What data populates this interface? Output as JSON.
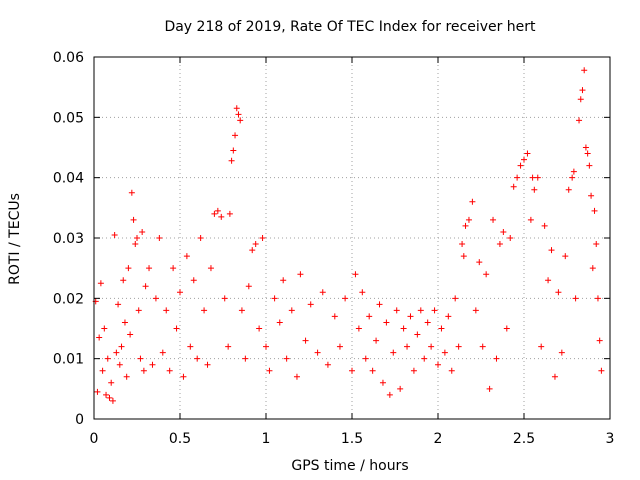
{
  "chart_data": {
    "type": "scatter",
    "title": "Day 218 of 2019, Rate Of TEC Index for receiver hert",
    "xlabel": "GPS time / hours",
    "ylabel": "ROTI / TECUs",
    "xlim": [
      0,
      3
    ],
    "ylim": [
      0,
      0.06
    ],
    "xticks": [
      0,
      0.5,
      1,
      1.5,
      2,
      2.5,
      3
    ],
    "xtick_labels": [
      "0",
      "0.5",
      "1",
      "1.5",
      "2",
      "2.5",
      "3"
    ],
    "yticks": [
      0,
      0.01,
      0.02,
      0.03,
      0.04,
      0.05,
      0.06
    ],
    "ytick_labels": [
      "0",
      "0.01",
      "0.02",
      "0.03",
      "0.04",
      "0.05",
      "0.06"
    ],
    "grid": true,
    "marker": "+",
    "color": "#ff0000",
    "series": [
      {
        "name": "ROTI",
        "points": [
          [
            0.01,
            0.0195
          ],
          [
            0.02,
            0.0045
          ],
          [
            0.03,
            0.0135
          ],
          [
            0.04,
            0.0225
          ],
          [
            0.05,
            0.008
          ],
          [
            0.06,
            0.015
          ],
          [
            0.07,
            0.004
          ],
          [
            0.08,
            0.01
          ],
          [
            0.09,
            0.0035
          ],
          [
            0.1,
            0.006
          ],
          [
            0.11,
            0.003
          ],
          [
            0.12,
            0.0305
          ],
          [
            0.13,
            0.011
          ],
          [
            0.14,
            0.019
          ],
          [
            0.15,
            0.009
          ],
          [
            0.16,
            0.012
          ],
          [
            0.17,
            0.023
          ],
          [
            0.18,
            0.016
          ],
          [
            0.19,
            0.007
          ],
          [
            0.2,
            0.025
          ],
          [
            0.21,
            0.014
          ],
          [
            0.22,
            0.0375
          ],
          [
            0.23,
            0.033
          ],
          [
            0.24,
            0.029
          ],
          [
            0.25,
            0.03
          ],
          [
            0.26,
            0.018
          ],
          [
            0.27,
            0.01
          ],
          [
            0.28,
            0.031
          ],
          [
            0.29,
            0.008
          ],
          [
            0.3,
            0.022
          ],
          [
            0.32,
            0.025
          ],
          [
            0.34,
            0.009
          ],
          [
            0.36,
            0.02
          ],
          [
            0.38,
            0.03
          ],
          [
            0.4,
            0.011
          ],
          [
            0.42,
            0.018
          ],
          [
            0.44,
            0.008
          ],
          [
            0.46,
            0.025
          ],
          [
            0.48,
            0.015
          ],
          [
            0.5,
            0.021
          ],
          [
            0.52,
            0.007
          ],
          [
            0.54,
            0.027
          ],
          [
            0.56,
            0.012
          ],
          [
            0.58,
            0.023
          ],
          [
            0.6,
            0.01
          ],
          [
            0.62,
            0.03
          ],
          [
            0.64,
            0.018
          ],
          [
            0.66,
            0.009
          ],
          [
            0.68,
            0.025
          ],
          [
            0.7,
            0.034
          ],
          [
            0.72,
            0.0345
          ],
          [
            0.74,
            0.0335
          ],
          [
            0.76,
            0.02
          ],
          [
            0.78,
            0.012
          ],
          [
            0.79,
            0.034
          ],
          [
            0.8,
            0.0428
          ],
          [
            0.81,
            0.0445
          ],
          [
            0.82,
            0.047
          ],
          [
            0.83,
            0.0515
          ],
          [
            0.84,
            0.0505
          ],
          [
            0.85,
            0.0495
          ],
          [
            0.86,
            0.018
          ],
          [
            0.88,
            0.01
          ],
          [
            0.9,
            0.022
          ],
          [
            0.92,
            0.028
          ],
          [
            0.94,
            0.029
          ],
          [
            0.96,
            0.015
          ],
          [
            0.98,
            0.03
          ],
          [
            1.0,
            0.012
          ],
          [
            1.02,
            0.008
          ],
          [
            1.05,
            0.02
          ],
          [
            1.08,
            0.016
          ],
          [
            1.1,
            0.023
          ],
          [
            1.12,
            0.01
          ],
          [
            1.15,
            0.018
          ],
          [
            1.18,
            0.007
          ],
          [
            1.2,
            0.024
          ],
          [
            1.23,
            0.013
          ],
          [
            1.26,
            0.019
          ],
          [
            1.3,
            0.011
          ],
          [
            1.33,
            0.021
          ],
          [
            1.36,
            0.009
          ],
          [
            1.4,
            0.017
          ],
          [
            1.43,
            0.012
          ],
          [
            1.46,
            0.02
          ],
          [
            1.5,
            0.008
          ],
          [
            1.52,
            0.024
          ],
          [
            1.54,
            0.015
          ],
          [
            1.56,
            0.021
          ],
          [
            1.58,
            0.01
          ],
          [
            1.6,
            0.017
          ],
          [
            1.62,
            0.008
          ],
          [
            1.64,
            0.013
          ],
          [
            1.66,
            0.019
          ],
          [
            1.68,
            0.006
          ],
          [
            1.7,
            0.016
          ],
          [
            1.72,
            0.004
          ],
          [
            1.74,
            0.011
          ],
          [
            1.76,
            0.018
          ],
          [
            1.78,
            0.005
          ],
          [
            1.8,
            0.015
          ],
          [
            1.82,
            0.012
          ],
          [
            1.84,
            0.017
          ],
          [
            1.86,
            0.008
          ],
          [
            1.88,
            0.014
          ],
          [
            1.9,
            0.018
          ],
          [
            1.92,
            0.01
          ],
          [
            1.94,
            0.016
          ],
          [
            1.96,
            0.012
          ],
          [
            1.98,
            0.018
          ],
          [
            2.0,
            0.009
          ],
          [
            2.02,
            0.015
          ],
          [
            2.04,
            0.011
          ],
          [
            2.06,
            0.017
          ],
          [
            2.08,
            0.008
          ],
          [
            2.1,
            0.02
          ],
          [
            2.12,
            0.012
          ],
          [
            2.14,
            0.029
          ],
          [
            2.15,
            0.027
          ],
          [
            2.16,
            0.032
          ],
          [
            2.18,
            0.033
          ],
          [
            2.2,
            0.036
          ],
          [
            2.22,
            0.018
          ],
          [
            2.24,
            0.026
          ],
          [
            2.26,
            0.012
          ],
          [
            2.28,
            0.024
          ],
          [
            2.3,
            0.005
          ],
          [
            2.32,
            0.033
          ],
          [
            2.34,
            0.01
          ],
          [
            2.36,
            0.029
          ],
          [
            2.38,
            0.031
          ],
          [
            2.4,
            0.015
          ],
          [
            2.42,
            0.03
          ],
          [
            2.44,
            0.0385
          ],
          [
            2.46,
            0.04
          ],
          [
            2.48,
            0.042
          ],
          [
            2.5,
            0.043
          ],
          [
            2.52,
            0.044
          ],
          [
            2.54,
            0.033
          ],
          [
            2.55,
            0.04
          ],
          [
            2.56,
            0.038
          ],
          [
            2.58,
            0.04
          ],
          [
            2.6,
            0.012
          ],
          [
            2.62,
            0.032
          ],
          [
            2.64,
            0.023
          ],
          [
            2.66,
            0.028
          ],
          [
            2.68,
            0.007
          ],
          [
            2.7,
            0.021
          ],
          [
            2.72,
            0.011
          ],
          [
            2.74,
            0.027
          ],
          [
            2.76,
            0.038
          ],
          [
            2.78,
            0.04
          ],
          [
            2.79,
            0.041
          ],
          [
            2.8,
            0.02
          ],
          [
            2.82,
            0.0495
          ],
          [
            2.83,
            0.053
          ],
          [
            2.84,
            0.0545
          ],
          [
            2.85,
            0.0578
          ],
          [
            2.86,
            0.045
          ],
          [
            2.87,
            0.044
          ],
          [
            2.88,
            0.042
          ],
          [
            2.89,
            0.037
          ],
          [
            2.9,
            0.025
          ],
          [
            2.91,
            0.0345
          ],
          [
            2.92,
            0.029
          ],
          [
            2.93,
            0.02
          ],
          [
            2.94,
            0.013
          ],
          [
            2.95,
            0.008
          ]
        ]
      }
    ]
  }
}
